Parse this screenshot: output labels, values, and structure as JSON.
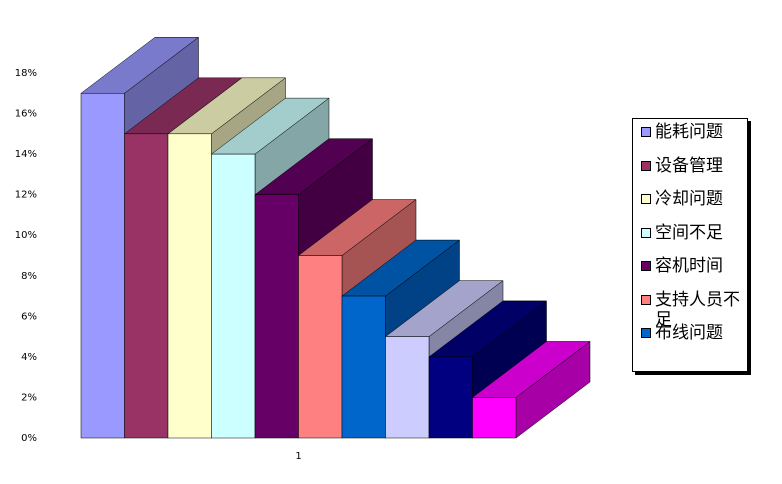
{
  "chart_data": {
    "type": "bar3d",
    "categories": [
      "1"
    ],
    "series": [
      {
        "name": "能耗问题",
        "color": "#9999ff",
        "values": [
          17
        ]
      },
      {
        "name": "设备管理",
        "color": "#993366",
        "values": [
          15
        ]
      },
      {
        "name": "冷却问题",
        "color": "#ffffcc",
        "values": [
          15
        ]
      },
      {
        "name": "空间不足",
        "color": "#ccffff",
        "values": [
          14
        ]
      },
      {
        "name": "容机时间",
        "color": "#660066",
        "values": [
          12
        ]
      },
      {
        "name": "支持人员不足",
        "color": "#ff8080",
        "values": [
          9
        ]
      },
      {
        "name": "布线问题",
        "color": "#0066cc",
        "values": [
          7
        ]
      },
      {
        "color": "#ccccff",
        "values": [
          5
        ]
      },
      {
        "color": "#000080",
        "values": [
          4
        ]
      },
      {
        "color": "#ff00ff",
        "values": [
          2
        ]
      }
    ],
    "ylim": [
      0,
      18
    ],
    "yticks": [
      {
        "value": 0,
        "label": "0%"
      },
      {
        "value": 2,
        "label": "2%"
      },
      {
        "value": 4,
        "label": "4%"
      },
      {
        "value": 6,
        "label": "6%"
      },
      {
        "value": 8,
        "label": "8%"
      },
      {
        "value": 10,
        "label": "10%"
      },
      {
        "value": 12,
        "label": "12%"
      },
      {
        "value": 14,
        "label": "14%"
      },
      {
        "value": 16,
        "label": "16%"
      },
      {
        "value": 18,
        "label": "18%"
      }
    ],
    "legend": "right"
  }
}
